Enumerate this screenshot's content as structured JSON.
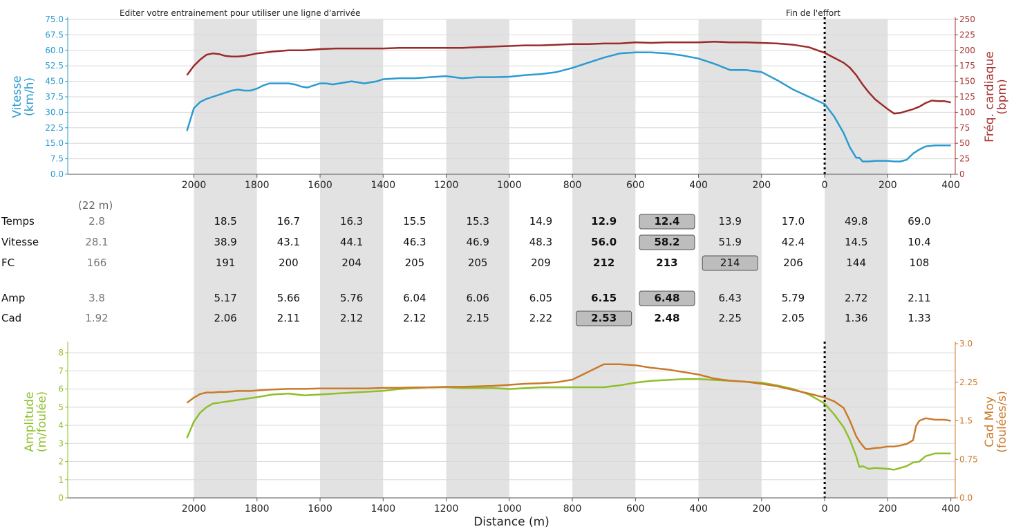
{
  "chart_data": [
    {
      "type": "line",
      "panel": "top",
      "annotations": {
        "left": "Editer votre entrainement pour utiliser une ligne d'arrivée",
        "right": "Fin de l'effort"
      },
      "xlabel": "",
      "xticks": [
        "2000",
        "1800",
        "1600",
        "1400",
        "1200",
        "1000",
        "800",
        "600",
        "400",
        "200",
        "0",
        "200",
        "400"
      ],
      "xlim": [
        -414,
        2400
      ],
      "left_axis": {
        "label_line1": "Vitesse",
        "label_line2": "(km/h)",
        "ylim": [
          0,
          75
        ],
        "ticks": [
          "0.0",
          "7.5",
          "15.0",
          "22.5",
          "30.0",
          "37.5",
          "45.0",
          "52.5",
          "60.0",
          "67.5",
          "75.0"
        ],
        "color": "#2a9bd0"
      },
      "right_axis": {
        "label_line1": "Fréq. cardiaque",
        "label_line2": "(bpm)",
        "ylim": [
          0,
          250
        ],
        "ticks": [
          "0",
          "25",
          "50",
          "75",
          "100",
          "125",
          "150",
          "175",
          "200",
          "225",
          "250"
        ],
        "color": "#a83232"
      },
      "series": [
        {
          "axis": "left",
          "color": "#2a9bd0",
          "x": [
            2022,
            2000,
            1980,
            1960,
            1940,
            1920,
            1900,
            1880,
            1860,
            1840,
            1820,
            1800,
            1780,
            1760,
            1740,
            1720,
            1700,
            1680,
            1660,
            1640,
            1620,
            1600,
            1580,
            1560,
            1540,
            1520,
            1500,
            1480,
            1460,
            1440,
            1420,
            1400,
            1350,
            1300,
            1250,
            1200,
            1150,
            1100,
            1050,
            1000,
            950,
            900,
            850,
            800,
            750,
            700,
            650,
            600,
            550,
            500,
            450,
            400,
            350,
            300,
            250,
            200,
            150,
            100,
            50,
            0,
            -30,
            -60,
            -80,
            -100,
            -110,
            -120,
            -140,
            -160,
            -200,
            -220,
            -240,
            -260,
            -280,
            -300,
            -320,
            -350,
            -400
          ],
          "values": [
            21,
            32,
            35,
            36.5,
            37.5,
            38.5,
            39.5,
            40.5,
            41,
            40.5,
            40.5,
            41.5,
            43,
            44,
            44,
            44,
            44,
            43.5,
            42.5,
            42,
            43,
            44,
            44,
            43.5,
            44,
            44.5,
            45,
            44.5,
            44,
            44.5,
            45,
            46,
            46.5,
            46.5,
            47,
            47.5,
            46.5,
            47,
            47,
            47.2,
            48,
            48.5,
            49.5,
            51.5,
            54,
            56.5,
            58.5,
            59,
            59,
            58.5,
            57.5,
            56,
            53.5,
            50.5,
            50.5,
            49.5,
            45.5,
            41,
            37.5,
            34,
            28,
            20,
            13,
            8,
            8,
            6.2,
            6.2,
            6.5,
            6.5,
            6.2,
            6.2,
            7,
            10,
            12,
            13.5,
            14,
            14
          ]
        },
        {
          "axis": "right",
          "color": "#9b2a2a",
          "x": [
            2022,
            2000,
            1980,
            1960,
            1940,
            1920,
            1900,
            1880,
            1860,
            1840,
            1820,
            1800,
            1750,
            1700,
            1650,
            1600,
            1550,
            1500,
            1450,
            1400,
            1350,
            1300,
            1250,
            1200,
            1150,
            1100,
            1050,
            1000,
            950,
            900,
            850,
            800,
            750,
            700,
            650,
            600,
            550,
            500,
            450,
            400,
            350,
            300,
            250,
            200,
            150,
            100,
            50,
            0,
            -30,
            -60,
            -80,
            -100,
            -120,
            -140,
            -160,
            -180,
            -200,
            -220,
            -240,
            -260,
            -280,
            -300,
            -320,
            -340,
            -360,
            -380,
            -400
          ],
          "values": [
            160,
            175,
            185,
            193,
            195,
            194,
            191,
            190,
            190,
            191,
            193,
            195,
            198,
            200,
            200,
            202,
            203,
            203,
            203,
            203,
            204,
            204,
            204,
            204,
            204,
            205,
            206,
            207,
            208,
            208,
            209,
            210,
            210,
            211,
            211,
            213,
            212,
            213,
            213,
            213,
            214,
            213,
            213,
            212,
            211,
            209,
            205,
            196,
            188,
            180,
            172,
            160,
            145,
            132,
            121,
            113,
            105,
            98,
            99,
            102,
            105,
            109,
            115,
            119,
            118,
            118,
            116
          ]
        }
      ]
    },
    {
      "type": "table",
      "panel": "middle",
      "first_column_note": "(22 m)",
      "columns": [
        "",
        "2000-1800",
        "1800-1600",
        "1600-1400",
        "1400-1200",
        "1200-1000",
        "1000-800",
        "800-600",
        "600-400",
        "400-200",
        "200-0",
        "0-200",
        "200-400"
      ],
      "rows": [
        {
          "label": "Temps",
          "values": [
            "2.8",
            "18.5",
            "16.7",
            "16.3",
            "15.5",
            "15.3",
            "14.9",
            "12.9",
            "12.4",
            "13.9",
            "17.0",
            "49.8",
            "69.0"
          ],
          "bold": [
            7,
            8
          ],
          "boxed": [
            8
          ]
        },
        {
          "label": "Vitesse",
          "values": [
            "28.1",
            "38.9",
            "43.1",
            "44.1",
            "46.3",
            "46.9",
            "48.3",
            "56.0",
            "58.2",
            "51.9",
            "42.4",
            "14.5",
            "10.4"
          ],
          "bold": [
            7,
            8
          ],
          "boxed": [
            8
          ]
        },
        {
          "label": "FC",
          "values": [
            "166",
            "191",
            "200",
            "204",
            "205",
            "205",
            "209",
            "212",
            "213",
            "214",
            "206",
            "144",
            "108"
          ],
          "bold": [
            7,
            8
          ],
          "boxed": [
            9
          ]
        },
        {
          "label": "Amp",
          "values": [
            "3.8",
            "5.17",
            "5.66",
            "5.76",
            "6.04",
            "6.06",
            "6.05",
            "6.15",
            "6.48",
            "6.43",
            "5.79",
            "2.72",
            "2.11"
          ],
          "bold": [
            7,
            8
          ],
          "boxed": [
            8
          ]
        },
        {
          "label": "Cad",
          "values": [
            "1.92",
            "2.06",
            "2.11",
            "2.12",
            "2.12",
            "2.15",
            "2.22",
            "2.53",
            "2.48",
            "2.25",
            "2.05",
            "1.36",
            "1.33"
          ],
          "bold": [
            7,
            8
          ],
          "boxed": [
            7
          ]
        }
      ]
    },
    {
      "type": "line",
      "panel": "bottom",
      "xlabel": "Distance (m)",
      "xticks": [
        "2000",
        "1800",
        "1600",
        "1400",
        "1200",
        "1000",
        "800",
        "600",
        "400",
        "200",
        "0",
        "200",
        "400"
      ],
      "xlim": [
        -414,
        2400
      ],
      "left_axis": {
        "label_line1": "Amplitude",
        "label_line2": "(m/foulée)",
        "ylim": [
          0,
          8.5
        ],
        "ticks": [
          "0",
          "1",
          "2",
          "3",
          "4",
          "5",
          "6",
          "7",
          "8"
        ],
        "color": "#8fbf2a"
      },
      "right_axis": {
        "label_line1": "Cad Moy",
        "label_line2": "(foulées/s)",
        "ylim": [
          0,
          3.0
        ],
        "ticks": [
          "0.0",
          "0.75",
          "1.5",
          "2.25",
          "3.0"
        ],
        "color": "#c97a2a"
      },
      "series": [
        {
          "axis": "left",
          "color": "#8fbf2a",
          "x": [
            2022,
            2000,
            1980,
            1960,
            1940,
            1920,
            1900,
            1880,
            1860,
            1840,
            1820,
            1800,
            1750,
            1700,
            1650,
            1600,
            1550,
            1500,
            1450,
            1400,
            1350,
            1300,
            1250,
            1200,
            1150,
            1100,
            1050,
            1000,
            950,
            900,
            850,
            800,
            750,
            700,
            650,
            600,
            550,
            500,
            450,
            400,
            350,
            300,
            250,
            200,
            150,
            100,
            50,
            0,
            -30,
            -60,
            -80,
            -100,
            -110,
            -120,
            -140,
            -160,
            -200,
            -220,
            -240,
            -260,
            -280,
            -300,
            -320,
            -350,
            -400
          ],
          "values": [
            3.3,
            4.2,
            4.7,
            5.0,
            5.2,
            5.25,
            5.3,
            5.35,
            5.4,
            5.45,
            5.5,
            5.55,
            5.7,
            5.75,
            5.65,
            5.7,
            5.75,
            5.8,
            5.85,
            5.9,
            6.0,
            6.05,
            6.1,
            6.1,
            6.05,
            6.05,
            6.05,
            6.0,
            6.05,
            6.1,
            6.1,
            6.1,
            6.1,
            6.1,
            6.2,
            6.35,
            6.45,
            6.5,
            6.55,
            6.55,
            6.5,
            6.45,
            6.4,
            6.35,
            6.2,
            6.0,
            5.7,
            5.2,
            4.6,
            3.9,
            3.2,
            2.3,
            1.7,
            1.75,
            1.6,
            1.65,
            1.6,
            1.55,
            1.65,
            1.75,
            1.95,
            2.0,
            2.3,
            2.45,
            2.45
          ]
        },
        {
          "axis": "right",
          "color": "#c97a2a",
          "x": [
            2022,
            2000,
            1980,
            1960,
            1940,
            1920,
            1900,
            1880,
            1860,
            1840,
            1820,
            1800,
            1750,
            1700,
            1650,
            1600,
            1550,
            1500,
            1450,
            1400,
            1350,
            1300,
            1250,
            1200,
            1150,
            1100,
            1050,
            1000,
            950,
            900,
            850,
            800,
            750,
            700,
            650,
            600,
            550,
            500,
            450,
            400,
            350,
            300,
            250,
            200,
            150,
            100,
            50,
            0,
            -30,
            -60,
            -80,
            -100,
            -110,
            -120,
            -130,
            -140,
            -160,
            -180,
            -200,
            -220,
            -240,
            -260,
            -280,
            -290,
            -300,
            -320,
            -350,
            -380,
            -400
          ],
          "values": [
            1.85,
            1.95,
            2.02,
            2.05,
            2.05,
            2.06,
            2.06,
            2.07,
            2.08,
            2.08,
            2.08,
            2.09,
            2.11,
            2.12,
            2.12,
            2.13,
            2.13,
            2.13,
            2.13,
            2.14,
            2.14,
            2.15,
            2.15,
            2.16,
            2.16,
            2.17,
            2.18,
            2.2,
            2.22,
            2.23,
            2.25,
            2.3,
            2.45,
            2.6,
            2.6,
            2.58,
            2.53,
            2.5,
            2.45,
            2.4,
            2.32,
            2.28,
            2.26,
            2.22,
            2.17,
            2.1,
            2.03,
            1.95,
            1.88,
            1.75,
            1.5,
            1.2,
            1.1,
            1.02,
            0.95,
            0.95,
            0.97,
            0.98,
            1.0,
            1.0,
            1.02,
            1.05,
            1.12,
            1.4,
            1.5,
            1.55,
            1.52,
            1.52,
            1.5
          ]
        }
      ]
    }
  ]
}
